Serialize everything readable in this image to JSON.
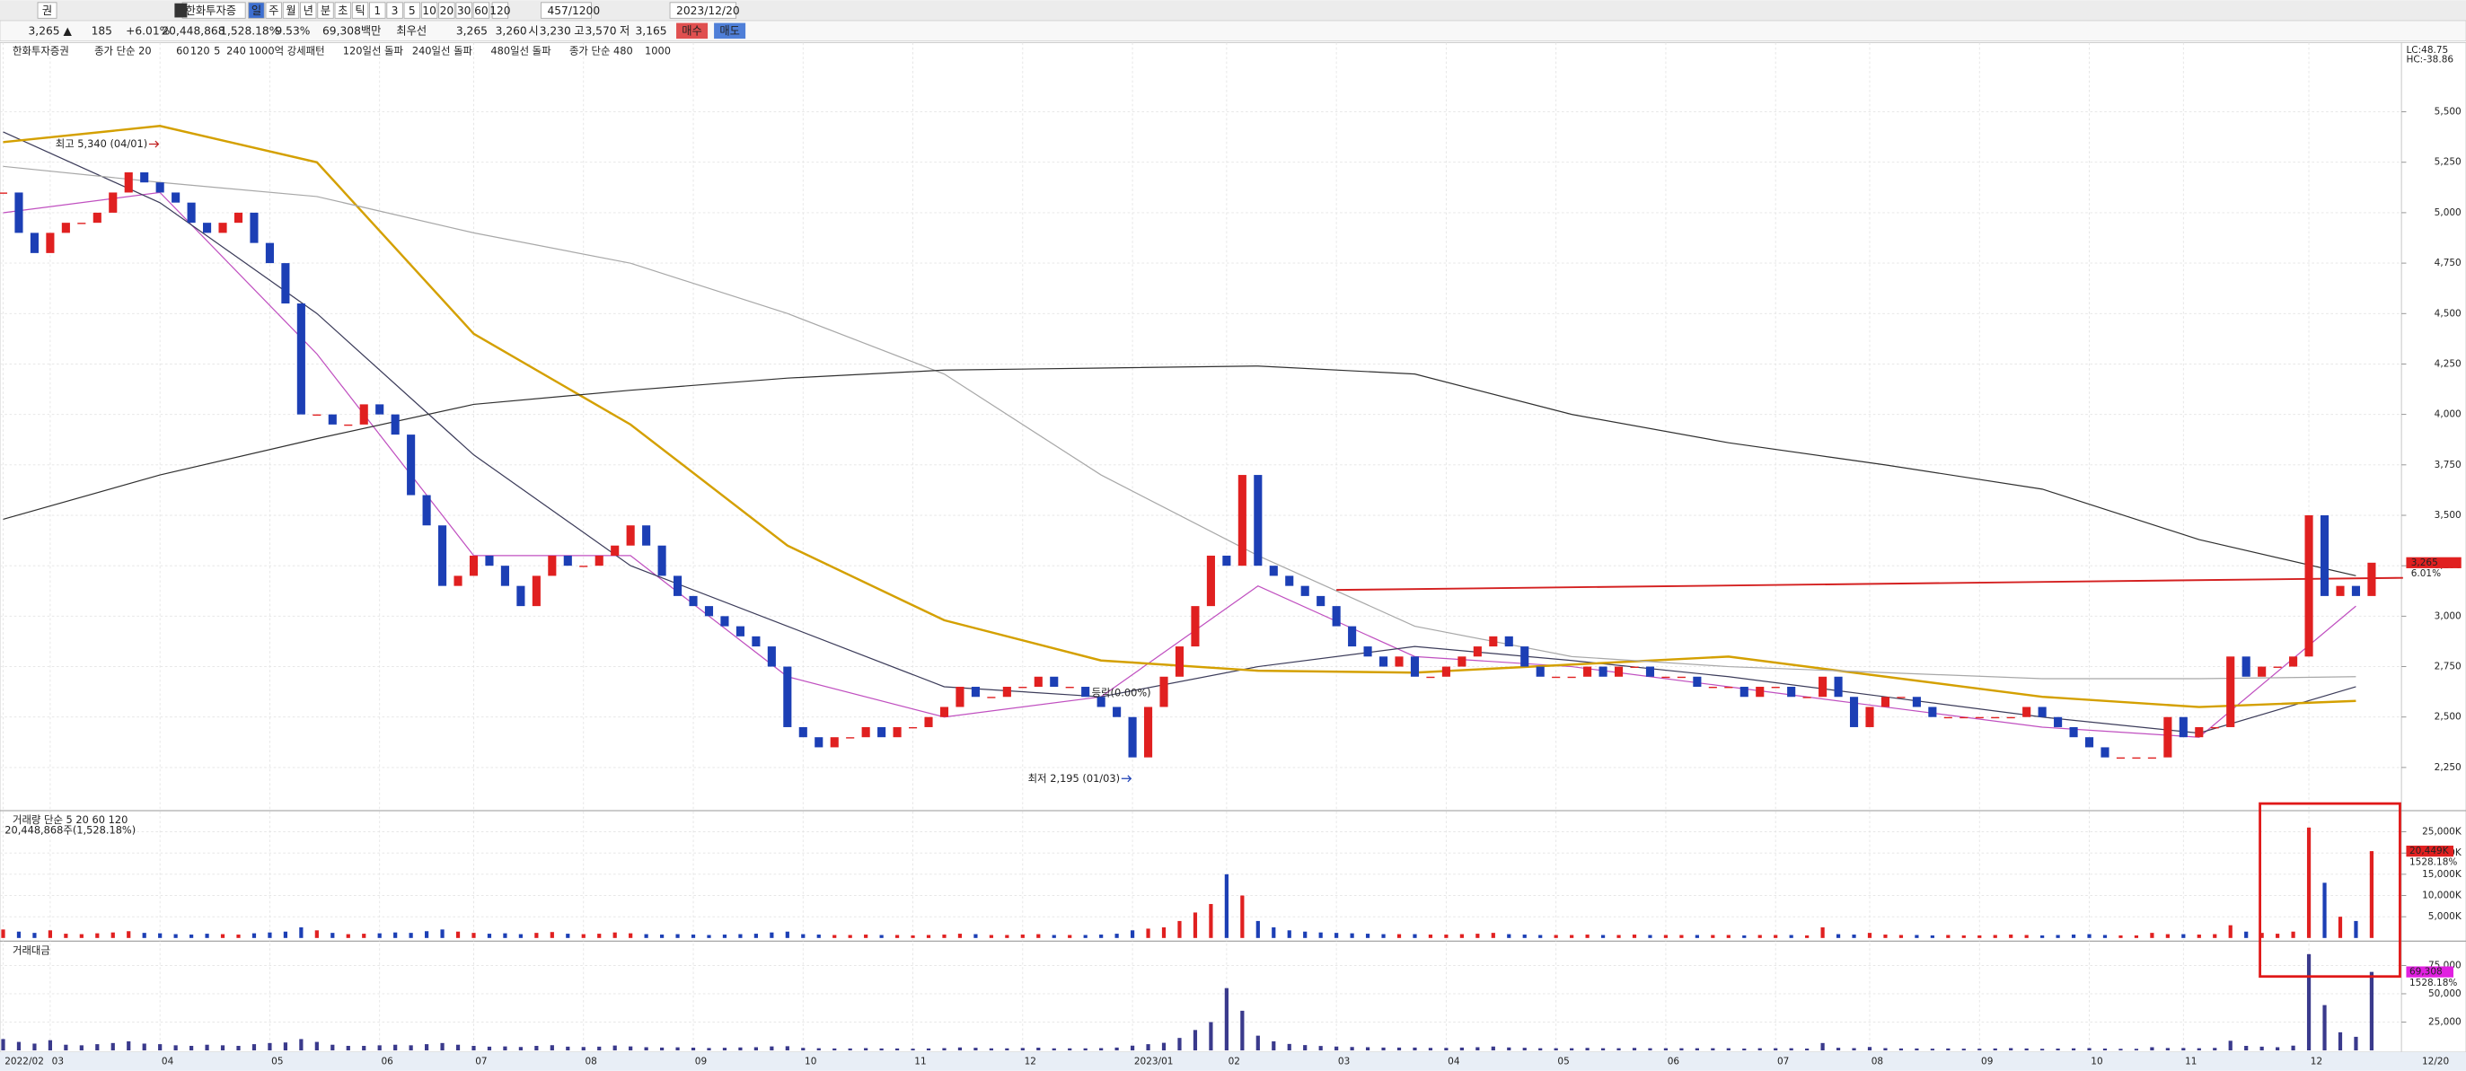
{
  "toolbar": {
    "row1": [
      "권",
      "한화투자증",
      "일",
      "주",
      "월",
      "년",
      "분",
      "초",
      "틱",
      "1",
      "3",
      "5",
      "10",
      "20",
      "30",
      "60",
      "120",
      "457/1200",
      "2023/12/20"
    ],
    "row2": [
      "3,265 ▲",
      "185",
      "+6.01%",
      "20,448,868",
      "1,528.18%",
      "9.53%",
      "69,308백만",
      "최우선",
      "3,265",
      "3,260",
      "시",
      "3,230",
      "고",
      "3,570",
      "저",
      "3,165",
      "매수",
      "매도"
    ]
  },
  "legend": [
    "한화투자증권",
    "종가 단순 20",
    "60",
    "120",
    "5",
    "240",
    "1000억 강세패턴",
    "120일선 돌파",
    "240일선 돌파",
    "480일선 돌파",
    "종가 단순 480",
    "1000"
  ],
  "corner": [
    "LC:48.75",
    "HC:-38.86"
  ],
  "date_label": "12/20",
  "chart_data": [
    {
      "type": "candlestick",
      "close": [
        5100,
        4900,
        4800,
        4900,
        4950,
        4950,
        5000,
        5100,
        5200,
        5150,
        5100,
        5050,
        4950,
        4900,
        4950,
        5000,
        4850,
        4750,
        4550,
        4000,
        4000,
        3950,
        3950,
        4050,
        4000,
        3900,
        3600,
        3450,
        3150,
        3200,
        3300,
        3250,
        3150,
        3050,
        3200,
        3300,
        3250,
        3250,
        3300,
        3350,
        3450,
        3350,
        3200,
        3100,
        3050,
        3000,
        2950,
        2900,
        2850,
        2750,
        2450,
        2400,
        2350,
        2400,
        2400,
        2450,
        2400,
        2450,
        2450,
        2500,
        2550,
        2650,
        2600,
        2600,
        2650,
        2650,
        2700,
        2650,
        2650,
        2600,
        2550,
        2500,
        2300,
        2550,
        2700,
        2850,
        3050,
        3300,
        3250,
        3700,
        3250,
        3200,
        3150,
        3100,
        3050,
        2950,
        2850,
        2800,
        2750,
        2800,
        2700,
        2700,
        2750,
        2800,
        2850,
        2900,
        2850,
        2750,
        2700,
        2700,
        2700,
        2750,
        2700,
        2750,
        2750,
        2700,
        2700,
        2700,
        2650,
        2650,
        2650,
        2600,
        2650,
        2650,
        2600,
        2600,
        2700,
        2600,
        2450,
        2550,
        2600,
        2600,
        2550,
        2500,
        2500,
        2500,
        2500,
        2500,
        2500,
        2550,
        2500,
        2450,
        2400,
        2350,
        2300,
        2300,
        2300,
        2300,
        2500,
        2400,
        2450,
        2450,
        2800,
        2700,
        2750,
        2750,
        2800,
        3500,
        3100,
        3150,
        3100,
        3265
      ],
      "ma_x": [
        0,
        10,
        20,
        30,
        40,
        50,
        60,
        70,
        80,
        90,
        100,
        110,
        120,
        130,
        140,
        150
      ],
      "series": [
        {
          "color": "#c050c0",
          "values": [
            5000,
            5100,
            4300,
            3300,
            3300,
            2700,
            2500,
            2600,
            3150,
            2800,
            2750,
            2650,
            2550,
            2450,
            2400,
            3050
          ]
        },
        {
          "color": "#3c3c5a",
          "values": [
            5400,
            5050,
            4500,
            3800,
            3250,
            2950,
            2650,
            2600,
            2750,
            2850,
            2780,
            2700,
            2600,
            2500,
            2420,
            2650
          ]
        },
        {
          "color": "#d4a000",
          "values": [
            5350,
            5430,
            5250,
            4400,
            3950,
            3350,
            2980,
            2780,
            2730,
            2720,
            2760,
            2800,
            2700,
            2600,
            2550,
            2580
          ]
        },
        {
          "color": "#a8a8a8",
          "values": [
            5230,
            5150,
            5080,
            4900,
            4750,
            4500,
            4200,
            3700,
            3300,
            2950,
            2800,
            2750,
            2720,
            2690,
            2690,
            2700
          ]
        },
        {
          "color": "#303030",
          "values": [
            3480,
            3700,
            3880,
            4050,
            4120,
            4180,
            4220,
            4230,
            4240,
            4200,
            4000,
            3860,
            3750,
            3630,
            3380,
            3200
          ]
        }
      ],
      "trendline": {
        "x": [
          85,
          153
        ],
        "values": [
          3130,
          3190
        ],
        "color": "#d42020"
      },
      "annotations": [
        {
          "text": "최고 5,340 (04/01)",
          "x": 10,
          "y": 5340
        },
        {
          "text": "최저 2,195 (01/03)",
          "x": 72,
          "y": 2195
        },
        {
          "text": "등락(0.00%)",
          "x": 70,
          "y": 2620
        }
      ],
      "price_tag": "3,265",
      "change_tag": "6.01%",
      "up_color": "#e02020",
      "down_color": "#1c3fb5",
      "ylim": [
        2040,
        5843
      ],
      "yticks": [
        {
          "value": 2250,
          "label": "2,250"
        },
        {
          "value": 2500,
          "label": "2,500"
        },
        {
          "value": 2750,
          "label": "2,750"
        },
        {
          "value": 3000,
          "label": "3,000"
        },
        {
          "value": 3250,
          "label": "3,250"
        },
        {
          "value": 3500,
          "label": "3,500"
        },
        {
          "value": 3750,
          "label": "3,750"
        },
        {
          "value": 4000,
          "label": "4,000"
        },
        {
          "value": 4250,
          "label": "4,250"
        },
        {
          "value": 4500,
          "label": "4,500"
        },
        {
          "value": 4750,
          "label": "4,750"
        },
        {
          "value": 5000,
          "label": "5,000"
        },
        {
          "value": 5250,
          "label": "5,250"
        },
        {
          "value": 5500,
          "label": "5,500"
        }
      ],
      "xticks": [
        {
          "value": 0,
          "label": "2022/02"
        },
        {
          "value": 3,
          "label": "03"
        },
        {
          "value": 10,
          "label": "04"
        },
        {
          "value": 17,
          "label": "05"
        },
        {
          "value": 24,
          "label": "06"
        },
        {
          "value": 30,
          "label": "07"
        },
        {
          "value": 37,
          "label": "08"
        },
        {
          "value": 44,
          "label": "09"
        },
        {
          "value": 51,
          "label": "10"
        },
        {
          "value": 58,
          "label": "11"
        },
        {
          "value": 65,
          "label": "12"
        },
        {
          "value": 72,
          "label": "2023/01"
        },
        {
          "value": 78,
          "label": "02"
        },
        {
          "value": 85,
          "label": "03"
        },
        {
          "value": 92,
          "label": "04"
        },
        {
          "value": 99,
          "label": "05"
        },
        {
          "value": 106,
          "label": "06"
        },
        {
          "value": 113,
          "label": "07"
        },
        {
          "value": 119,
          "label": "08"
        },
        {
          "value": 126,
          "label": "09"
        },
        {
          "value": 133,
          "label": "10"
        },
        {
          "value": 139,
          "label": "11"
        },
        {
          "value": 147,
          "label": "12"
        }
      ],
      "grid": true
    },
    {
      "type": "bar",
      "title": "거래량 단순 5 20 60 120",
      "subtitle": "20,448,868주(1,528.18%)",
      "values": [
        2000,
        1500,
        1200,
        1800,
        1000,
        900,
        1100,
        1300,
        1600,
        1200,
        1100,
        900,
        800,
        1000,
        900,
        800,
        1100,
        1300,
        1500,
        2500,
        1800,
        1200,
        900,
        1000,
        1100,
        1300,
        1200,
        1600,
        2000,
        1500,
        1200,
        1000,
        1100,
        900,
        1200,
        1400,
        1000,
        900,
        1000,
        1300,
        1100,
        900,
        800,
        900,
        800,
        700,
        800,
        900,
        1000,
        1300,
        1500,
        900,
        800,
        700,
        700,
        800,
        700,
        700,
        600,
        700,
        800,
        1000,
        900,
        700,
        700,
        800,
        900,
        700,
        700,
        700,
        800,
        1000,
        1800,
        2200,
        2500,
        4000,
        6000,
        8000,
        15000,
        10000,
        4000,
        2500,
        1800,
        1500,
        1300,
        1200,
        1100,
        1000,
        900,
        900,
        900,
        800,
        800,
        900,
        1000,
        1200,
        900,
        800,
        700,
        700,
        700,
        800,
        700,
        700,
        800,
        700,
        700,
        700,
        700,
        700,
        700,
        600,
        700,
        700,
        700,
        600,
        2500,
        900,
        800,
        1200,
        800,
        700,
        700,
        600,
        700,
        600,
        600,
        700,
        800,
        700,
        600,
        700,
        800,
        900,
        700,
        600,
        600,
        1200,
        900,
        900,
        800,
        900,
        3000,
        1500,
        1200,
        1000,
        1500,
        26000,
        13000,
        5000,
        4000,
        20449
      ],
      "value_tag": "20,449K",
      "ratio_tag": "1528.18%",
      "ylim": [
        0,
        29800
      ],
      "yticks": [
        {
          "value": 5000,
          "label": "5,000K"
        },
        {
          "value": 10000,
          "label": "10,000K"
        },
        {
          "value": 15000,
          "label": "15,000K"
        },
        {
          "value": 20000,
          "label": "20,000K"
        },
        {
          "value": 25000,
          "label": "25,000K"
        }
      ],
      "grid": true
    },
    {
      "type": "bar",
      "title": "거래대금",
      "color": "#3a3a8c",
      "values": [
        10000,
        7500,
        6000,
        9000,
        5000,
        4500,
        5500,
        6500,
        8000,
        6000,
        5500,
        4500,
        4000,
        5000,
        4500,
        4000,
        5500,
        6500,
        7000,
        10000,
        7500,
        5000,
        4000,
        4000,
        4500,
        5000,
        4500,
        5500,
        6500,
        5000,
        4000,
        3300,
        3500,
        3000,
        4000,
        4600,
        3300,
        3000,
        3300,
        4300,
        3500,
        2800,
        2500,
        2700,
        2400,
        2100,
        2300,
        2600,
        2800,
        3500,
        3700,
        2200,
        1900,
        1700,
        1700,
        2000,
        1700,
        1700,
        1500,
        1700,
        2000,
        2600,
        2300,
        1800,
        1800,
        2100,
        2400,
        1800,
        1800,
        1800,
        2000,
        2500,
        4200,
        5500,
        6700,
        11000,
        18000,
        25000,
        55000,
        35000,
        13000,
        8000,
        5700,
        4700,
        3900,
        3400,
        3000,
        2800,
        2500,
        2500,
        2500,
        2200,
        2200,
        2500,
        2800,
        3400,
        2600,
        2300,
        1900,
        1900,
        1900,
        2200,
        1900,
        1900,
        2200,
        1900,
        1900,
        1900,
        1900,
        1900,
        1900,
        1600,
        1900,
        1900,
        1900,
        1600,
        6500,
        2300,
        2000,
        3000,
        2000,
        1700,
        1700,
        1500,
        1700,
        1500,
        1500,
        1700,
        2000,
        1700,
        1400,
        1600,
        1800,
        2000,
        1600,
        1400,
        1400,
        2800,
        2100,
        2100,
        1900,
        2200,
        8500,
        4000,
        3300,
        2800,
        4200,
        85000,
        40000,
        16000,
        12000,
        69308
      ],
      "value_tag": "69,308",
      "ratio_tag": "1528.18%",
      "ylim": [
        0,
        95800
      ],
      "yticks": [
        {
          "value": 25000,
          "label": "25,000"
        },
        {
          "value": 50000,
          "label": "50,000"
        },
        {
          "value": 75000,
          "label": "75,000"
        }
      ],
      "grid": true
    }
  ]
}
